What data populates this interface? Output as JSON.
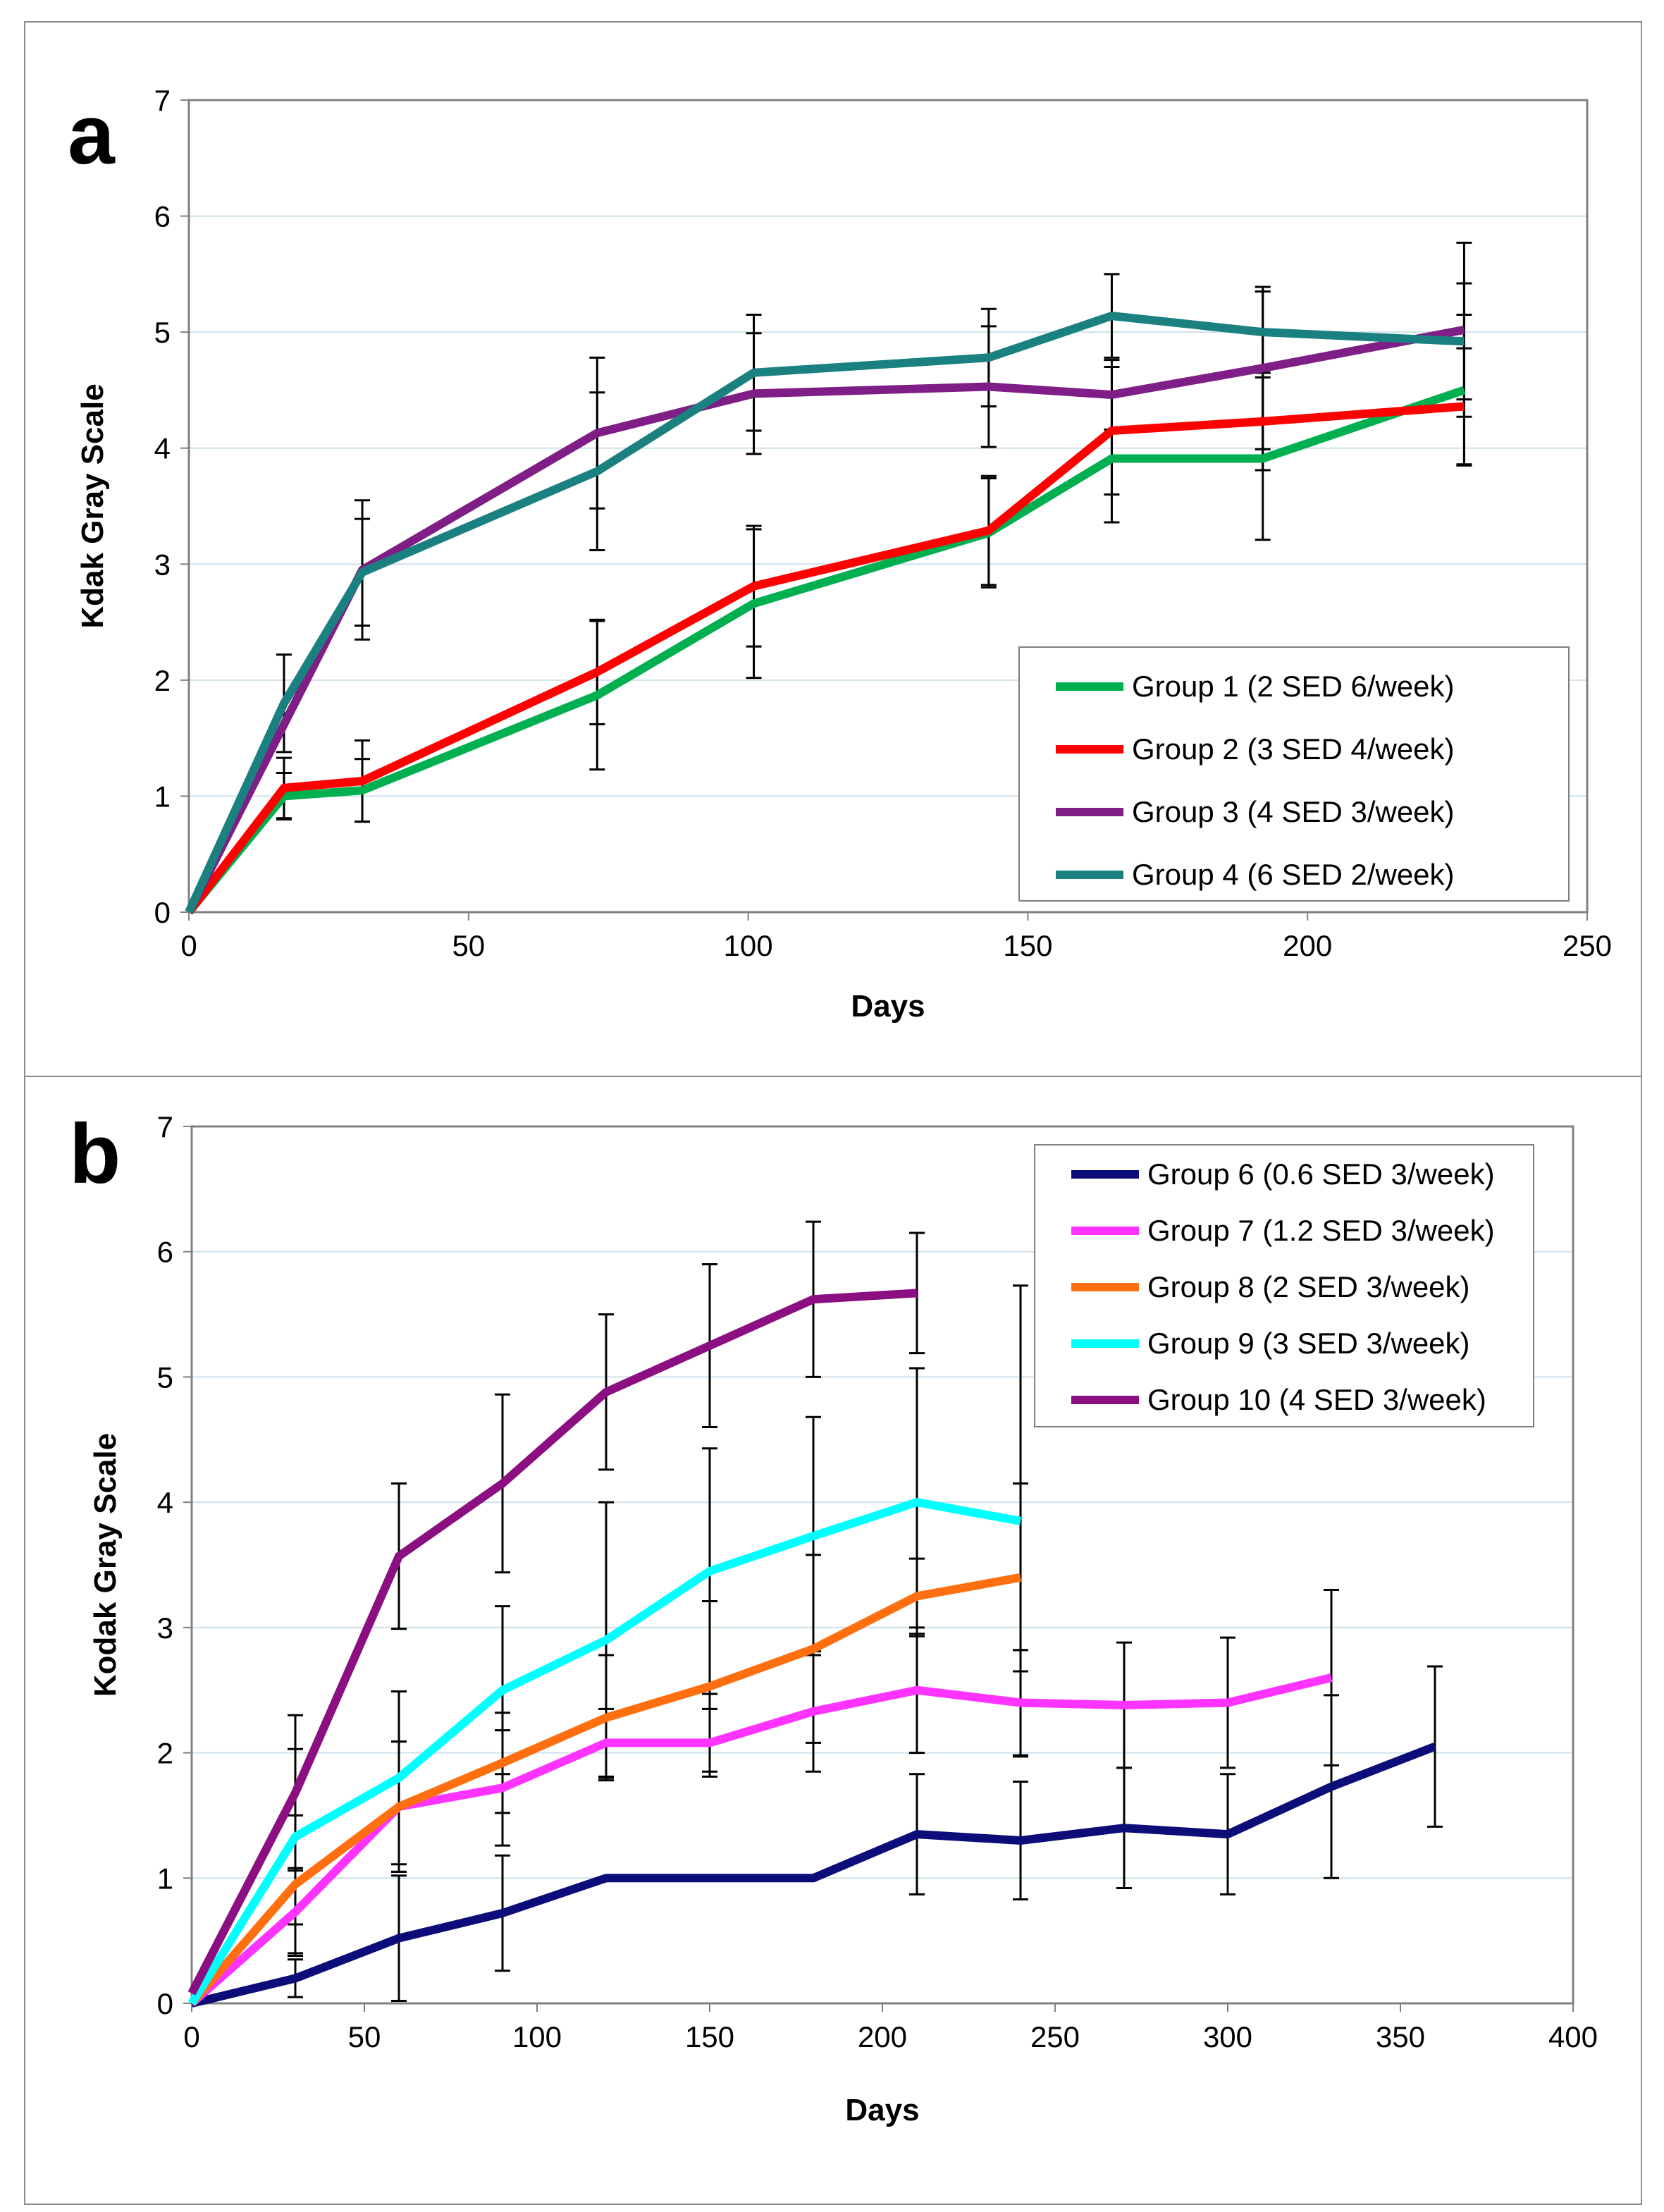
{
  "chart_data": [
    {
      "type": "line",
      "panel_label": "a",
      "xlabel": "Days",
      "ylabel": "Kdak Gray Scale",
      "xlim": [
        0,
        250
      ],
      "ylim": [
        0,
        7
      ],
      "xticks": [
        0,
        50,
        100,
        150,
        200,
        250
      ],
      "yticks": [
        0,
        1,
        2,
        3,
        4,
        5,
        6,
        7
      ],
      "grid": true,
      "legend_position": "bottom-right",
      "series": [
        {
          "name": "Group 1 (2 SED 6/week)",
          "color": "#00b050",
          "x": [
            0,
            17,
            31,
            73,
            101,
            143,
            165,
            192,
            228
          ],
          "y": [
            0,
            1.0,
            1.05,
            1.87,
            2.66,
            3.27,
            3.91,
            3.91,
            4.5
          ],
          "err": [
            0,
            0.2,
            0.27,
            0.64,
            0.64,
            0.47,
            0.55,
            0.7,
            0.65
          ]
        },
        {
          "name": "Group 2 (3 SED 4/week)",
          "color": "#ff0000",
          "x": [
            0,
            17,
            31,
            73,
            101,
            143,
            165,
            192,
            228
          ],
          "y": [
            0,
            1.07,
            1.13,
            2.07,
            2.81,
            3.29,
            4.15,
            4.23,
            4.36
          ],
          "err": [
            0,
            0.26,
            0.35,
            0.45,
            0.52,
            0.47,
            0.55,
            0.42,
            0.5
          ]
        },
        {
          "name": "Group 3 (4 SED 3/week)",
          "color": "#7f1e86",
          "x": [
            0,
            31,
            73,
            101,
            143,
            165,
            192,
            228
          ],
          "y": [
            0,
            2.95,
            4.13,
            4.47,
            4.53,
            4.46,
            4.69,
            5.02
          ],
          "err": [
            0,
            0.6,
            0.65,
            0.52,
            0.52,
            0.3,
            0.7,
            0.75
          ]
        },
        {
          "name": "Group 4 (6 SED 2/week)",
          "color": "#1b8080",
          "x": [
            0,
            17,
            31,
            73,
            101,
            143,
            165,
            192,
            228
          ],
          "y": [
            0,
            1.8,
            2.93,
            3.8,
            4.65,
            4.78,
            5.14,
            5.0,
            4.92
          ],
          "err": [
            0,
            0.42,
            0.46,
            0.68,
            0.5,
            0.42,
            0.36,
            0.35,
            0.5
          ]
        }
      ]
    },
    {
      "type": "line",
      "panel_label": "b",
      "xlabel": "Days",
      "ylabel": "Kodak Gray Scale",
      "xlim": [
        0,
        400
      ],
      "ylim": [
        0,
        7
      ],
      "xticks": [
        0,
        50,
        100,
        150,
        200,
        250,
        300,
        350,
        400
      ],
      "yticks": [
        0,
        1,
        2,
        3,
        4,
        5,
        6,
        7
      ],
      "grid": true,
      "legend_position": "top-right",
      "series": [
        {
          "name": "Group 6 (0.6 SED 3/week)",
          "color": "#0d0d7a",
          "x": [
            0,
            30,
            60,
            90,
            120,
            150,
            180,
            210,
            240,
            270,
            300,
            330,
            360
          ],
          "y": [
            0,
            0.2,
            0.52,
            0.72,
            1.0,
            1.0,
            1.0,
            1.35,
            1.3,
            1.4,
            1.35,
            1.73,
            2.05
          ],
          "err": [
            0,
            0.15,
            0.5,
            0.46,
            0.0,
            0.0,
            0.0,
            0.48,
            0.47,
            0.48,
            0.48,
            0.73,
            0.64
          ]
        },
        {
          "name": "Group 7 (1.2 SED 3/week)",
          "color": "#ff33ff",
          "x": [
            0,
            30,
            60,
            90,
            120,
            150,
            180,
            210,
            240,
            270,
            300,
            330
          ],
          "y": [
            0,
            0.73,
            1.57,
            1.72,
            2.08,
            2.08,
            2.33,
            2.5,
            2.4,
            2.38,
            2.4,
            2.6
          ],
          "err": [
            0,
            0.35,
            0.52,
            0.46,
            0.27,
            0.27,
            0.48,
            0.5,
            0.42,
            0.5,
            0.52,
            0.7
          ]
        },
        {
          "name": "Group 8 (2 SED 3/week)",
          "color": "#ff6f0f",
          "x": [
            0,
            30,
            60,
            90,
            120,
            150,
            180,
            210,
            240
          ],
          "y": [
            0,
            0.95,
            1.57,
            1.92,
            2.28,
            2.53,
            2.83,
            3.25,
            3.4
          ],
          "err": [
            0,
            0.55,
            0.52,
            0.4,
            0.5,
            0.68,
            0.75,
            0.3,
            0.75
          ]
        },
        {
          "name": "Group 9 (3 SED 3/week)",
          "color": "#00ffff",
          "x": [
            0,
            30,
            60,
            90,
            120,
            150,
            180,
            210,
            240
          ],
          "y": [
            0,
            1.33,
            1.8,
            2.5,
            2.9,
            3.45,
            3.73,
            4.0,
            3.85
          ],
          "err": [
            0,
            0.7,
            0.69,
            0.67,
            1.1,
            0.98,
            0.95,
            1.07,
            1.88
          ]
        },
        {
          "name": "Group 10 (4 SED 3/week)",
          "color": "#8b0f80",
          "x": [
            0,
            30,
            60,
            90,
            120,
            150,
            180,
            210
          ],
          "y": [
            0.08,
            1.68,
            3.57,
            4.15,
            4.88,
            5.25,
            5.62,
            5.67
          ],
          "err": [
            0,
            0.62,
            0.58,
            0.71,
            0.62,
            0.65,
            0.62,
            0.48
          ]
        }
      ]
    }
  ]
}
